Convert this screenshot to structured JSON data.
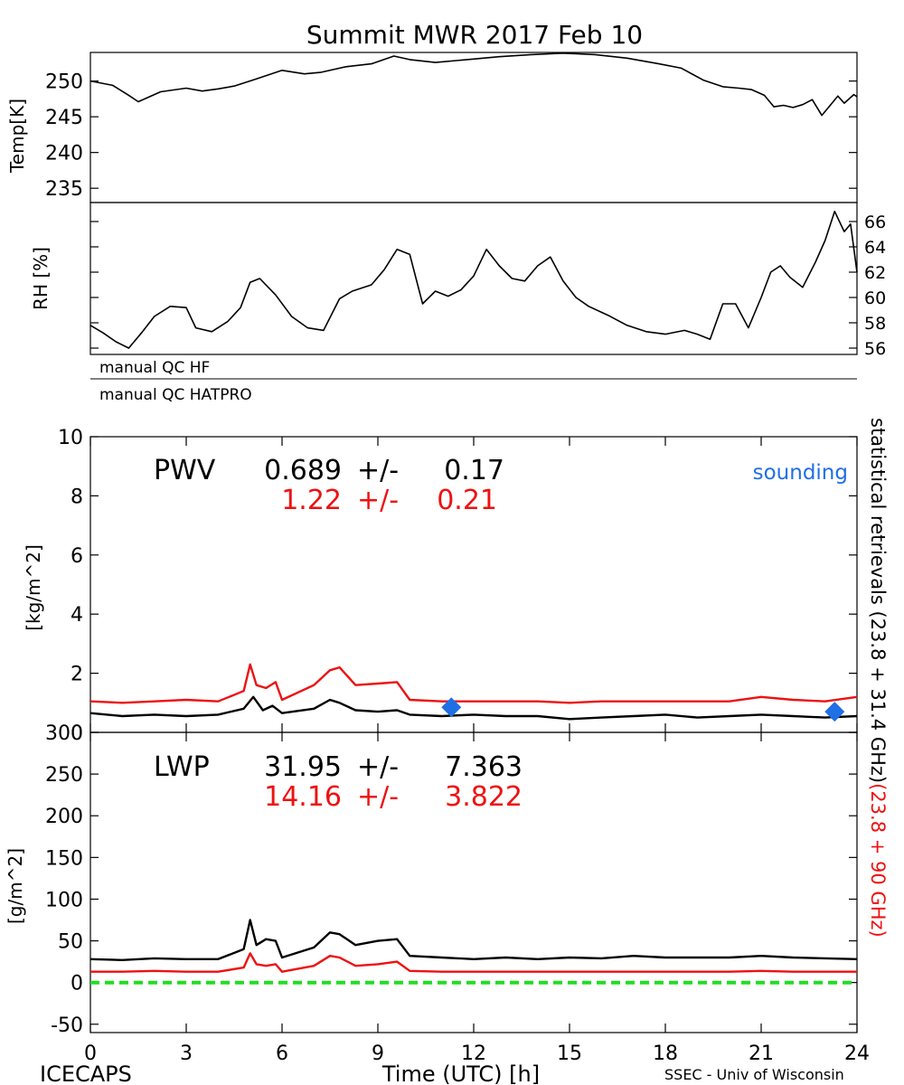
{
  "title": "Summit MWR 2017 Feb 10",
  "footer": {
    "left": "ICECAPS",
    "center": "Time (UTC) [h]",
    "right": "SSEC - Univ of Wisconsin"
  },
  "colors": {
    "hf": "#000000",
    "hatpro": "#ee1111",
    "sounding": "#1f6fe5",
    "zero_line": "#22dd22"
  },
  "qc_labels": [
    "manual QC HF",
    "manual QC HATPRO"
  ],
  "side_label_black": "statistical retrievals (23.8 + 31.4 GHz)",
  "side_label_red": "(23.8 + 90 GHz)",
  "chart_data": [
    {
      "type": "line",
      "ylabel": "Temp[K]",
      "xlim": [
        0,
        24
      ],
      "ylim": [
        233,
        254
      ],
      "yticks": [
        235,
        240,
        245,
        250
      ],
      "series": [
        {
          "x": [
            0,
            0.7,
            1.2,
            1.5,
            2.2,
            3.0,
            3.5,
            4.0,
            4.5,
            5.2,
            6.0,
            6.7,
            7.2,
            8.0,
            8.8,
            9.5,
            10.0,
            10.8,
            11.8,
            12.8,
            13.8,
            14.8,
            15.8,
            16.8,
            17.8,
            18.5,
            19.2,
            19.8,
            20.3,
            20.7,
            21.1,
            21.4,
            21.7,
            22.0,
            22.3,
            22.6,
            22.9,
            23.2,
            23.4,
            23.6,
            23.9,
            24.0
          ],
          "y": [
            250.0,
            249.4,
            248.0,
            247.1,
            248.5,
            249.0,
            248.6,
            248.9,
            249.3,
            250.3,
            251.5,
            251.0,
            251.2,
            252.0,
            252.4,
            253.5,
            253.0,
            252.6,
            253.0,
            253.4,
            253.7,
            253.9,
            253.7,
            253.2,
            252.4,
            251.8,
            250.1,
            249.2,
            249.0,
            248.8,
            248.0,
            246.4,
            246.6,
            246.3,
            246.7,
            247.4,
            245.2,
            246.8,
            247.9,
            246.9,
            248.1,
            247.8
          ]
        }
      ]
    },
    {
      "type": "line",
      "ylabel": "RH [%]",
      "xlim": [
        0,
        24
      ],
      "ylim": [
        55.5,
        67.5
      ],
      "yticks": [
        56,
        58,
        60,
        62,
        64,
        66
      ],
      "series": [
        {
          "x": [
            0,
            0.4,
            0.8,
            1.2,
            1.6,
            2.0,
            2.5,
            3.0,
            3.3,
            3.8,
            4.3,
            4.7,
            5.0,
            5.3,
            5.8,
            6.3,
            6.8,
            7.3,
            7.8,
            8.2,
            8.8,
            9.2,
            9.6,
            10.0,
            10.4,
            10.8,
            11.2,
            11.6,
            12.0,
            12.4,
            12.8,
            13.2,
            13.6,
            14.0,
            14.4,
            14.8,
            15.2,
            15.6,
            16.2,
            16.8,
            17.4,
            18.0,
            18.6,
            19.0,
            19.4,
            19.8,
            20.2,
            20.6,
            21.0,
            21.3,
            21.6,
            21.9,
            22.3,
            22.7,
            23.0,
            23.3,
            23.6,
            23.8,
            24.0
          ],
          "y": [
            57.8,
            57.2,
            56.5,
            56.0,
            57.2,
            58.5,
            59.3,
            59.2,
            57.6,
            57.3,
            58.1,
            59.2,
            61.2,
            61.5,
            60.2,
            58.5,
            57.6,
            57.4,
            59.9,
            60.5,
            61.0,
            62.2,
            63.8,
            63.4,
            59.5,
            60.5,
            60.1,
            60.6,
            61.7,
            63.8,
            62.5,
            61.5,
            61.3,
            62.5,
            63.2,
            61.3,
            60.0,
            59.3,
            58.6,
            57.8,
            57.3,
            57.1,
            57.4,
            57.1,
            56.7,
            59.5,
            59.5,
            57.6,
            60.0,
            62.0,
            62.5,
            61.6,
            60.8,
            62.8,
            64.5,
            66.8,
            65.2,
            65.8,
            62.0
          ]
        }
      ]
    },
    {
      "type": "line",
      "ylabel": "[kg/m^2]",
      "xlim": [
        0,
        24
      ],
      "ylim": [
        0,
        10
      ],
      "xticks": [
        0,
        3,
        6,
        9,
        12,
        15,
        18,
        21,
        24
      ],
      "yticks": [
        0,
        2,
        4,
        6,
        8,
        10
      ],
      "annotation_label": "PWV",
      "annotation_legend": "sounding",
      "stats": [
        {
          "mean": "0.689",
          "sep": "+/-",
          "std": "0.17"
        },
        {
          "mean": "1.22",
          "sep": "+/-",
          "std": "0.21"
        }
      ],
      "series": [
        {
          "name": "HF",
          "x": [
            0,
            1,
            2,
            3,
            4,
            4.8,
            5.1,
            5.4,
            5.7,
            6.0,
            7.0,
            7.5,
            7.8,
            8.3,
            9.0,
            9.6,
            10.0,
            11.0,
            12.0,
            13.0,
            14.0,
            15.0,
            16.0,
            17.0,
            18.0,
            19.0,
            20.0,
            21.0,
            22.0,
            23.0,
            24.0
          ],
          "y": [
            0.65,
            0.55,
            0.6,
            0.55,
            0.6,
            0.8,
            1.2,
            0.75,
            0.9,
            0.65,
            0.8,
            1.1,
            1.0,
            0.75,
            0.7,
            0.75,
            0.6,
            0.55,
            0.6,
            0.55,
            0.55,
            0.45,
            0.5,
            0.55,
            0.6,
            0.5,
            0.55,
            0.6,
            0.55,
            0.5,
            0.55
          ]
        },
        {
          "name": "HATPRO",
          "x": [
            0,
            1,
            2,
            3,
            4,
            4.8,
            5.0,
            5.2,
            5.5,
            5.8,
            6.0,
            7.0,
            7.5,
            7.8,
            8.3,
            9.0,
            9.6,
            10.0,
            11.0,
            12.0,
            13.0,
            14.0,
            15.0,
            16.0,
            17.0,
            18.0,
            19.0,
            20.0,
            21.0,
            22.0,
            23.0,
            24.0
          ],
          "y": [
            1.05,
            1.0,
            1.05,
            1.1,
            1.05,
            1.4,
            2.3,
            1.6,
            1.5,
            1.7,
            1.1,
            1.6,
            2.1,
            2.2,
            1.6,
            1.65,
            1.7,
            1.1,
            1.05,
            1.05,
            1.05,
            1.05,
            1.0,
            1.05,
            1.05,
            1.05,
            1.05,
            1.05,
            1.2,
            1.1,
            1.05,
            1.2
          ]
        },
        {
          "name": "sounding",
          "x": [
            11.3,
            23.3
          ],
          "y": [
            0.85,
            0.7
          ]
        }
      ]
    },
    {
      "type": "line",
      "ylabel": "[g/m^2]",
      "xlim": [
        0,
        24
      ],
      "ylim": [
        -60,
        300
      ],
      "xticks": [
        0,
        3,
        6,
        9,
        12,
        15,
        18,
        21,
        24
      ],
      "yticks": [
        -50,
        0,
        50,
        100,
        150,
        200,
        250,
        300
      ],
      "annotation_label": "LWP",
      "stats": [
        {
          "mean": "31.95",
          "sep": "+/-",
          "std": "7.363"
        },
        {
          "mean": "14.16",
          "sep": "+/-",
          "std": "3.822"
        }
      ],
      "series": [
        {
          "name": "HF",
          "x": [
            0,
            1,
            2,
            3,
            4,
            4.8,
            5.0,
            5.2,
            5.5,
            5.8,
            6.0,
            7.0,
            7.5,
            7.8,
            8.3,
            9.0,
            9.6,
            10.0,
            11.0,
            12.0,
            13.0,
            14.0,
            15.0,
            16.0,
            17.0,
            18.0,
            19.0,
            20.0,
            21.0,
            22.0,
            23.0,
            24.0
          ],
          "y": [
            28,
            27,
            29,
            28,
            28,
            40,
            75,
            45,
            52,
            50,
            30,
            42,
            60,
            58,
            45,
            50,
            52,
            32,
            30,
            28,
            30,
            28,
            30,
            29,
            32,
            30,
            30,
            30,
            32,
            30,
            29,
            28
          ]
        },
        {
          "name": "HATPRO",
          "x": [
            0,
            1,
            2,
            3,
            4,
            4.8,
            5.0,
            5.2,
            5.5,
            5.8,
            6.0,
            7.0,
            7.5,
            7.8,
            8.3,
            9.0,
            9.6,
            10.0,
            11.0,
            12.0,
            13.0,
            14.0,
            15.0,
            16.0,
            17.0,
            18.0,
            19.0,
            20.0,
            21.0,
            22.0,
            23.0,
            24.0
          ],
          "y": [
            13,
            13,
            14,
            13,
            13,
            18,
            35,
            22,
            20,
            22,
            13,
            20,
            32,
            30,
            20,
            22,
            25,
            14,
            13,
            13,
            13,
            13,
            13,
            13,
            13,
            13,
            13,
            13,
            14,
            13,
            13,
            13
          ]
        },
        {
          "name": "zero",
          "x": [
            0,
            24
          ],
          "y": [
            0,
            0
          ]
        }
      ]
    }
  ]
}
